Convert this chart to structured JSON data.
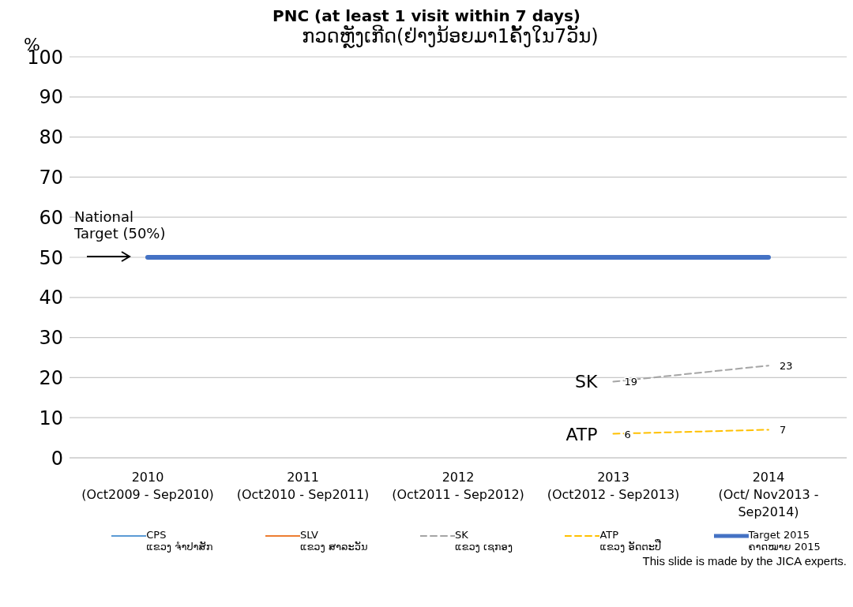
{
  "chart_data": {
    "type": "line",
    "title": "PNC (at least 1 visit within 7 days)",
    "subtitle": "ກວດຫຼັງເກີດ(ຢ່າງນ້ອຍມາ1ຄັ້ງໃນ7ວັນ)",
    "ylabel": "%",
    "categories": [
      "2010\n(Oct2009 - Sep2010)",
      "2011\n(Oct2010 - Sep2011)",
      "2012\n(Oct2011 - Sep2012)",
      "2013\n(Oct2012 - Sep2013)",
      "2014\n(Oct/ Nov2013 -\nSep2014)"
    ],
    "series": [
      {
        "name": "CPS\nແຂວງ ຈຳປາສັກ",
        "color": "#5b9bd5",
        "line_style": "solid",
        "values": [
          null,
          null,
          null,
          null,
          null
        ]
      },
      {
        "name": "SLV\nແຂວງ ສາລະວັນ",
        "color": "#ed7d31",
        "line_style": "solid",
        "values": [
          null,
          null,
          null,
          null,
          null
        ]
      },
      {
        "name": "SK\nແຂວງ ເຊກອງ",
        "color": "#a5a5a5",
        "line_style": "dashed",
        "values": [
          null,
          null,
          null,
          19,
          23
        ],
        "value_labels": [
          null,
          null,
          null,
          "19",
          "23"
        ]
      },
      {
        "name": "ATP\nແຂວງ ອັດຕະປື",
        "color": "#ffc000",
        "line_style": "dashed",
        "values": [
          null,
          null,
          null,
          6,
          7
        ],
        "value_labels": [
          null,
          null,
          null,
          "6",
          "7"
        ]
      },
      {
        "name": "Target 2015\nຄາດໝາຍ 2015",
        "color": "#4472c4",
        "line_style": "solid",
        "values": [
          50,
          50,
          50,
          50,
          50
        ]
      }
    ],
    "ylim": [
      0,
      100
    ],
    "yticks": [
      0,
      10,
      20,
      30,
      40,
      50,
      60,
      70,
      80,
      90,
      100
    ],
    "grid": "y",
    "legend": "bottom",
    "marker": "none",
    "annotations": [
      "National Target (50%)",
      {
        "text": "SK",
        "x": "2013\n(Oct2012 - Sep2013)",
        "y": 19
      },
      {
        "text": "ATP",
        "x": "2013\n(Oct2012 - Sep2013)",
        "y": 6
      },
      "This slide is made by the JICA experts."
    ]
  }
}
